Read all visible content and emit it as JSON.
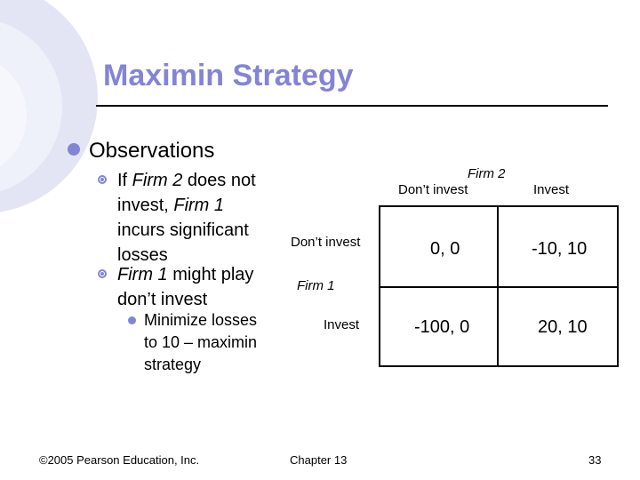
{
  "slide": {
    "title": "Maximin Strategy",
    "bullet1": "Observations",
    "sub1": {
      "line1": "If ",
      "firm2": "Firm 2",
      "line1b": " does not",
      "line2": "invest, ",
      "firm1": "Firm 1",
      "line3": "incurs significant",
      "line4": "losses"
    },
    "sub2": {
      "firm1": "Firm 1",
      "rest": " might play",
      "line2": "don’t invest"
    },
    "subsub": {
      "line1": "Minimize losses",
      "line2": "to 10 – maximin",
      "line3": "strategy"
    }
  },
  "matrix": {
    "col_player": "Firm 2",
    "col_dont": "Don’t invest",
    "col_invest": "Invest",
    "row_player": "Firm 1",
    "row_dont": "Don’t invest",
    "row_invest": "Invest",
    "cells": [
      [
        "0, 0",
        "-10, 10"
      ],
      [
        "-100, 0",
        "20, 10"
      ]
    ]
  },
  "footer": {
    "copyright": "©2005 Pearson Education, Inc.",
    "chapter": "Chapter 13",
    "page": "33"
  },
  "colors": {
    "accent": "#8484d6",
    "decoration": "#e0e2f4"
  }
}
